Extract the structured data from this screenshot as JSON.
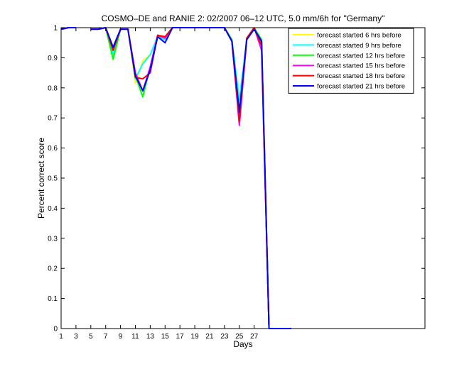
{
  "chart_data": {
    "type": "line",
    "title": "COSMO–DE and RANIE 2: 02/2007 06–12 UTC, 5.0 mm/6h for \"Germany\"",
    "xlabel": "Days",
    "ylabel": "Percent correct score",
    "xlim": [
      1,
      50
    ],
    "ylim": [
      0,
      1
    ],
    "xticks": [
      1,
      3,
      5,
      7,
      9,
      11,
      13,
      15,
      17,
      19,
      21,
      23,
      25,
      27
    ],
    "yticks": [
      0,
      0.1,
      0.2,
      0.3,
      0.4,
      0.5,
      0.6,
      0.7,
      0.8,
      0.9,
      1
    ],
    "ytick_labels": [
      "0",
      "0.1",
      "0.2",
      "0.3",
      "0.4",
      "0.5",
      "0.6",
      "0.7",
      "0.8",
      "0.9",
      "1"
    ],
    "grid": false,
    "legend_position": "top-right",
    "x": [
      1,
      2,
      3,
      4,
      5,
      6,
      7,
      8,
      9,
      10,
      11,
      12,
      13,
      14,
      15,
      16,
      17,
      18,
      19,
      20,
      21,
      22,
      23,
      24,
      25,
      26,
      27,
      28,
      29,
      30,
      31,
      32
    ],
    "series": [
      {
        "name": "forecast started 6 hrs before",
        "color": "#ffff00",
        "values": [
          0.995,
          1,
          1,
          null,
          0.995,
          0.995,
          1,
          0.92,
          0.995,
          0.995,
          0.815,
          0.89,
          0.91,
          0.97,
          0.96,
          1,
          1,
          1,
          1,
          1,
          1,
          1,
          1,
          0.96,
          0.71,
          0.96,
          1,
          0.955,
          0,
          0,
          0,
          0
        ]
      },
      {
        "name": "forecast started 9 hrs before",
        "color": "#00ffff",
        "values": [
          0.995,
          1,
          1,
          null,
          0.995,
          0.995,
          1,
          0.91,
          0.995,
          0.995,
          0.83,
          0.88,
          0.91,
          0.97,
          0.96,
          1,
          1,
          1,
          1,
          1,
          1,
          1,
          1,
          0.96,
          0.76,
          0.96,
          1,
          0.95,
          0,
          0,
          0,
          0
        ]
      },
      {
        "name": "forecast started 12 hrs before",
        "color": "#00ff00",
        "values": [
          0.995,
          1,
          1,
          null,
          0.995,
          0.995,
          1,
          0.895,
          0.995,
          0.995,
          0.84,
          0.77,
          0.87,
          0.97,
          0.97,
          1,
          1,
          1,
          1,
          1,
          1,
          1,
          1,
          0.96,
          0.72,
          0.965,
          1,
          0.96,
          0,
          0,
          0,
          0
        ]
      },
      {
        "name": "forecast started 15 hrs before",
        "color": "#ff00ff",
        "values": [
          0.995,
          1,
          1,
          null,
          0.995,
          0.995,
          1,
          0.925,
          0.995,
          0.995,
          0.85,
          0.79,
          0.87,
          0.975,
          0.965,
          1,
          1,
          1,
          1,
          1,
          1,
          1,
          1,
          0.955,
          0.675,
          0.96,
          1,
          0.925,
          0,
          0,
          0,
          0
        ]
      },
      {
        "name": "forecast started 18 hrs before",
        "color": "#ff0000",
        "values": [
          0.995,
          1,
          1,
          null,
          0.995,
          0.995,
          1,
          0.925,
          0.995,
          0.995,
          0.835,
          0.83,
          0.85,
          0.975,
          0.97,
          1,
          1,
          1,
          1,
          1,
          1,
          1,
          1,
          0.955,
          0.69,
          0.965,
          1,
          0.94,
          0,
          0,
          0,
          0
        ]
      },
      {
        "name": "forecast started 21 hrs before",
        "color": "#0000ff",
        "values": [
          0.995,
          1,
          1,
          null,
          0.995,
          0.995,
          1,
          0.935,
          0.995,
          0.995,
          0.84,
          0.79,
          0.86,
          0.97,
          0.95,
          1,
          1,
          1,
          1,
          1,
          1,
          1,
          1,
          0.955,
          0.72,
          0.96,
          0.995,
          0.955,
          0,
          0,
          0,
          0
        ]
      }
    ]
  }
}
